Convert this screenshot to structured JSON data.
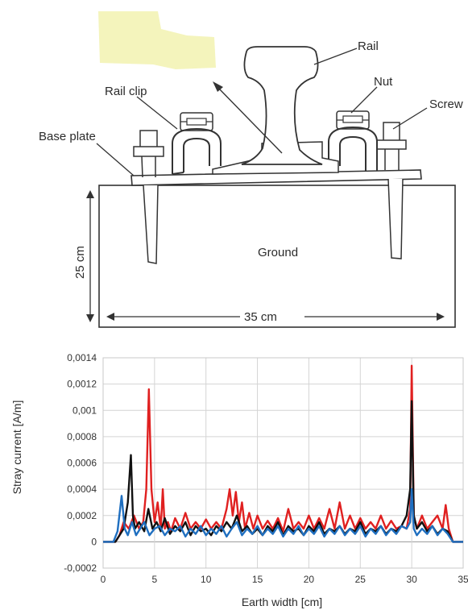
{
  "diagram": {
    "labels": {
      "rail": "Rail",
      "nut": "Nut",
      "screw": "Screw",
      "rail_clip": "Rail clip",
      "base_plate": "Base plate",
      "ground": "Ground",
      "depth": "25 cm",
      "width": "35 cm"
    }
  },
  "chart_data": {
    "type": "line",
    "xlabel": "Earth width [cm]",
    "ylabel": "Stray current [A/m]",
    "xlim": [
      0,
      35
    ],
    "ylim": [
      -0.0002,
      0.0014
    ],
    "xticks": [
      "0",
      "5",
      "10",
      "15",
      "20",
      "25",
      "30",
      "35"
    ],
    "yticks": [
      "-0,0002",
      "0",
      "0,0002",
      "0,0004",
      "0,0006",
      "0,0008",
      "0,001",
      "0,0012",
      "0,0014"
    ],
    "grid": true,
    "colors": [
      "#e02020",
      "#111111",
      "#1f6fc0"
    ],
    "series": [
      {
        "color": "#e02020",
        "x": [
          0,
          1.2,
          1.6,
          2.0,
          2.5,
          3.0,
          3.5,
          3.9,
          4.2,
          4.45,
          4.7,
          5.0,
          5.3,
          5.6,
          5.8,
          6.0,
          6.3,
          6.6,
          7.0,
          7.5,
          8.0,
          8.5,
          9.0,
          9.5,
          10.0,
          10.5,
          11.0,
          11.5,
          12.0,
          12.3,
          12.6,
          12.9,
          13.2,
          13.5,
          13.8,
          14.2,
          14.6,
          15.0,
          15.5,
          16.0,
          16.5,
          17.0,
          17.5,
          18.0,
          18.5,
          19.0,
          19.5,
          20.0,
          20.5,
          21.0,
          21.5,
          22.0,
          22.5,
          23.0,
          23.5,
          24.0,
          24.5,
          25.0,
          25.5,
          26.0,
          26.5,
          27.0,
          27.5,
          28.0,
          28.5,
          29.0,
          29.5,
          29.85,
          30.0,
          30.2,
          30.5,
          31.0,
          31.5,
          32.0,
          32.5,
          33.0,
          33.3,
          33.6,
          34.0,
          35.0
        ],
        "values": [
          0,
          0,
          5e-05,
          0.00015,
          0.0001,
          0.0002,
          0.0001,
          0.00015,
          0.0004,
          0.00116,
          0.0004,
          0.00015,
          0.0003,
          0.0001,
          0.0004,
          0.0001,
          0.00015,
          8e-05,
          0.00018,
          0.0001,
          0.00022,
          0.0001,
          0.00015,
          0.0001,
          0.00017,
          0.0001,
          0.00015,
          0.0001,
          0.00025,
          0.0004,
          0.0002,
          0.00038,
          0.00015,
          0.0003,
          0.0001,
          0.00022,
          0.0001,
          0.0002,
          0.0001,
          0.00016,
          0.0001,
          0.00018,
          8e-05,
          0.00025,
          0.0001,
          0.00015,
          0.0001,
          0.0002,
          0.0001,
          0.00018,
          0.0001,
          0.00025,
          0.0001,
          0.0003,
          0.0001,
          0.0002,
          0.0001,
          0.00018,
          0.0001,
          0.00015,
          0.0001,
          0.0002,
          0.0001,
          0.00016,
          0.0001,
          0.00012,
          0.0001,
          0.00025,
          0.00134,
          0.0002,
          0.0001,
          0.0002,
          0.0001,
          0.00015,
          0.0002,
          0.0001,
          0.00028,
          0.0001,
          0,
          0
        ]
      },
      {
        "color": "#111111",
        "x": [
          0,
          1.2,
          1.6,
          2.0,
          2.4,
          2.7,
          2.9,
          3.1,
          3.5,
          4.0,
          4.4,
          4.8,
          5.2,
          5.6,
          6.0,
          6.5,
          7.0,
          7.5,
          8.0,
          8.5,
          9.0,
          9.5,
          10.0,
          10.5,
          11.0,
          11.5,
          12.0,
          12.5,
          13.0,
          13.5,
          14.0,
          14.5,
          15.0,
          15.5,
          16.0,
          16.5,
          17.0,
          17.5,
          18.0,
          18.5,
          19.0,
          19.5,
          20.0,
          20.5,
          21.0,
          21.5,
          22.0,
          22.5,
          23.0,
          23.5,
          24.0,
          24.5,
          25.0,
          25.5,
          26.0,
          26.5,
          27.0,
          27.5,
          28.0,
          28.5,
          29.0,
          29.5,
          29.85,
          30.0,
          30.2,
          30.5,
          31.0,
          31.5,
          32.0,
          32.5,
          33.0,
          33.5,
          34.0,
          35.0
        ],
        "values": [
          0,
          0,
          5e-05,
          0.0001,
          0.0003,
          0.00066,
          0.0002,
          0.0001,
          0.00015,
          8e-05,
          0.00025,
          0.0001,
          0.00015,
          8e-05,
          0.00018,
          6e-05,
          0.00012,
          8e-05,
          0.00015,
          5e-05,
          0.00012,
          8e-05,
          0.0001,
          5e-05,
          0.00012,
          8e-05,
          0.00015,
          0.0001,
          0.0002,
          8e-05,
          0.00012,
          6e-05,
          0.0001,
          5e-05,
          0.00012,
          8e-05,
          0.00015,
          5e-05,
          0.00012,
          8e-05,
          0.0001,
          5e-05,
          0.00012,
          8e-05,
          0.00015,
          6e-05,
          0.0001,
          8e-05,
          0.00012,
          6e-05,
          0.0001,
          8e-05,
          0.00015,
          6e-05,
          0.0001,
          8e-05,
          0.00012,
          6e-05,
          0.0001,
          8e-05,
          0.00012,
          0.0002,
          0.0004,
          0.00107,
          0.0002,
          0.0001,
          0.00015,
          8e-05,
          0.00012,
          6e-05,
          0.0001,
          8e-05,
          0,
          0
        ]
      },
      {
        "color": "#1f6fc0",
        "x": [
          0,
          1.0,
          1.4,
          1.8,
          2.1,
          2.4,
          2.8,
          3.2,
          3.6,
          4.0,
          4.5,
          5.0,
          5.5,
          6.0,
          6.5,
          7.0,
          7.5,
          8.0,
          8.5,
          9.0,
          9.5,
          10.0,
          10.5,
          11.0,
          11.5,
          12.0,
          12.5,
          13.0,
          13.5,
          14.0,
          14.5,
          15.0,
          15.5,
          16.0,
          16.5,
          17.0,
          17.5,
          18.0,
          18.5,
          19.0,
          19.5,
          20.0,
          20.5,
          21.0,
          21.5,
          22.0,
          22.5,
          23.0,
          23.5,
          24.0,
          24.5,
          25.0,
          25.5,
          26.0,
          26.5,
          27.0,
          27.5,
          28.0,
          28.5,
          29.0,
          29.5,
          29.85,
          30.0,
          30.2,
          30.5,
          31.0,
          31.5,
          32.0,
          32.5,
          33.0,
          33.5,
          34.0,
          35.0
        ],
        "values": [
          0,
          0,
          8e-05,
          0.00035,
          0.0001,
          5e-05,
          0.00015,
          5e-05,
          0.0001,
          0.00015,
          5e-05,
          0.0001,
          0.00012,
          5e-05,
          0.0001,
          8e-05,
          0.00012,
          4e-05,
          0.0001,
          6e-05,
          0.00012,
          5e-05,
          0.0001,
          6e-05,
          0.00012,
          4e-05,
          0.0001,
          0.00015,
          5e-05,
          0.0001,
          6e-05,
          0.00012,
          5e-05,
          0.0001,
          6e-05,
          0.00012,
          4e-05,
          0.0001,
          6e-05,
          0.00012,
          5e-05,
          0.0001,
          6e-05,
          0.00012,
          4e-05,
          0.0001,
          6e-05,
          0.00012,
          5e-05,
          0.0001,
          6e-05,
          0.00012,
          4e-05,
          0.0001,
          6e-05,
          0.00012,
          5e-05,
          0.0001,
          6e-05,
          0.00012,
          0.0001,
          0.00015,
          0.0004,
          0.0001,
          5e-05,
          0.0001,
          6e-05,
          0.00012,
          5e-05,
          0.0001,
          6e-05,
          0,
          0
        ]
      }
    ]
  }
}
